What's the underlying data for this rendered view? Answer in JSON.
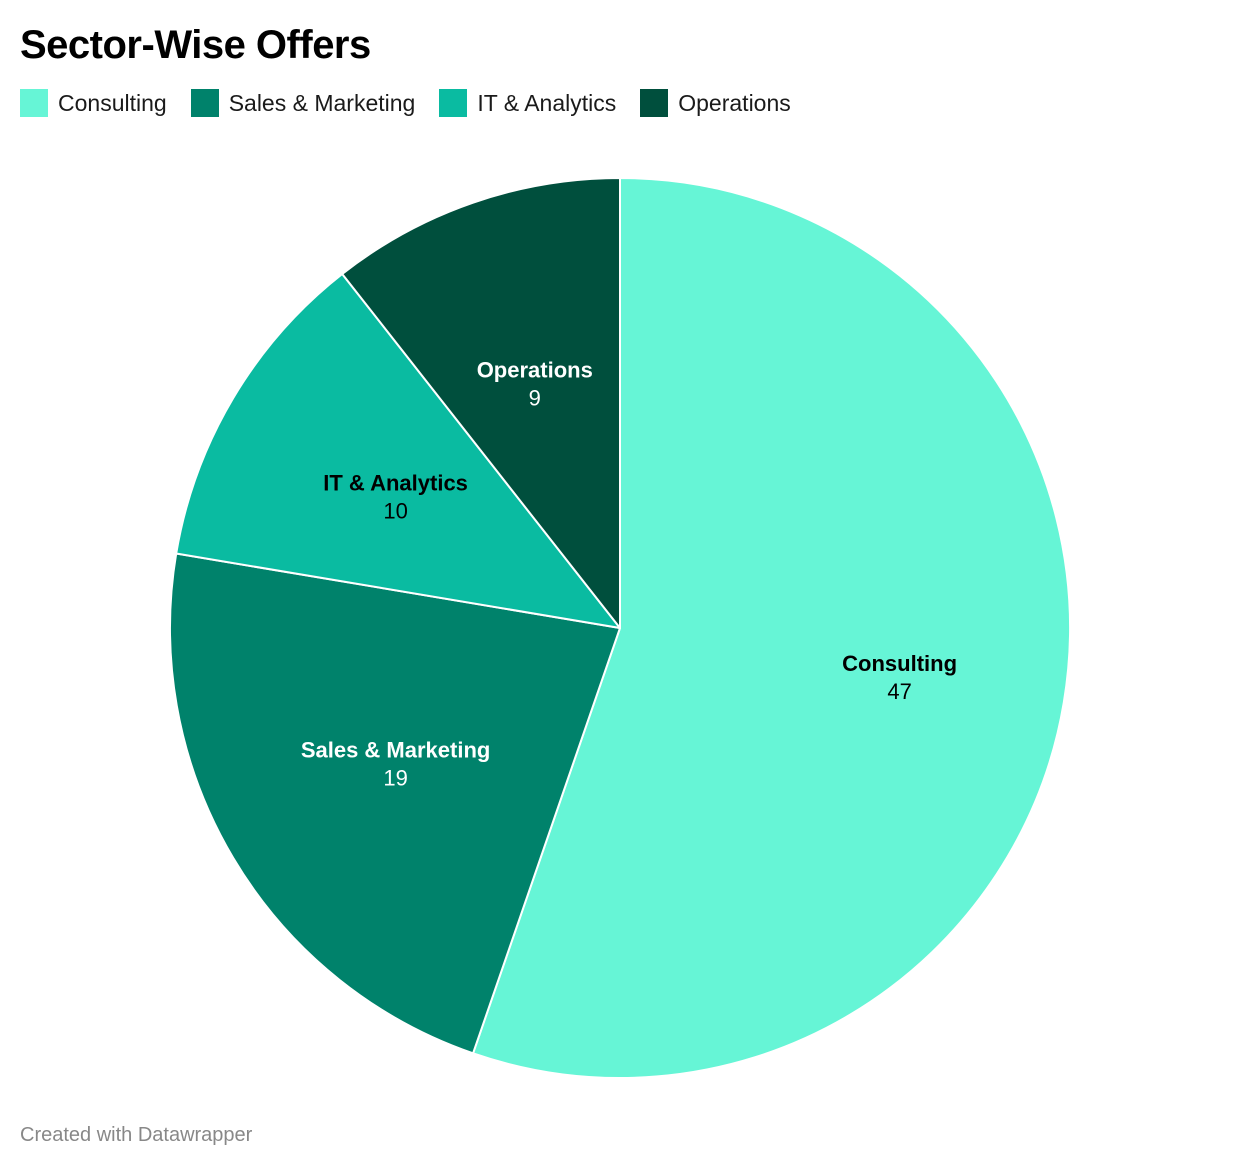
{
  "chart_data": {
    "type": "pie",
    "title": "Sector-Wise Offers",
    "categories": [
      "Consulting",
      "Sales & Marketing",
      "IT & Analytics",
      "Operations"
    ],
    "values": [
      47,
      19,
      10,
      9
    ],
    "colors": [
      "#66f5d6",
      "#00826b",
      "#0abba1",
      "#004f3d"
    ],
    "label_colors": [
      "#000000",
      "#ffffff",
      "#000000",
      "#ffffff"
    ],
    "legend_position": "top-left",
    "start": "top",
    "direction": "clockwise"
  },
  "footer": {
    "credit": "Created with Datawrapper"
  }
}
